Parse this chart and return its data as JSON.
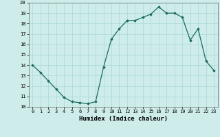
{
  "x": [
    0,
    1,
    2,
    3,
    4,
    5,
    6,
    7,
    8,
    9,
    10,
    11,
    12,
    13,
    14,
    15,
    16,
    17,
    18,
    19,
    20,
    21,
    22,
    23
  ],
  "y": [
    14.0,
    13.3,
    12.5,
    11.7,
    10.9,
    10.5,
    10.4,
    10.3,
    10.5,
    13.8,
    16.5,
    17.5,
    18.3,
    18.3,
    18.6,
    18.9,
    19.6,
    19.0,
    19.0,
    18.6,
    16.4,
    17.5,
    14.4,
    13.5
  ],
  "xlabel": "Humidex (Indice chaleur)",
  "ylim": [
    10,
    20
  ],
  "xlim": [
    -0.5,
    23.5
  ],
  "yticks": [
    10,
    11,
    12,
    13,
    14,
    15,
    16,
    17,
    18,
    19,
    20
  ],
  "xticks": [
    0,
    1,
    2,
    3,
    4,
    5,
    6,
    7,
    8,
    9,
    10,
    11,
    12,
    13,
    14,
    15,
    16,
    17,
    18,
    19,
    20,
    21,
    22,
    23
  ],
  "line_color": "#1a6b5a",
  "marker_color": "#1a6b5a",
  "bg_color": "#cdecea",
  "grid_color": "#a8d8d4",
  "tick_fontsize": 5.0,
  "xlabel_fontsize": 6.5
}
